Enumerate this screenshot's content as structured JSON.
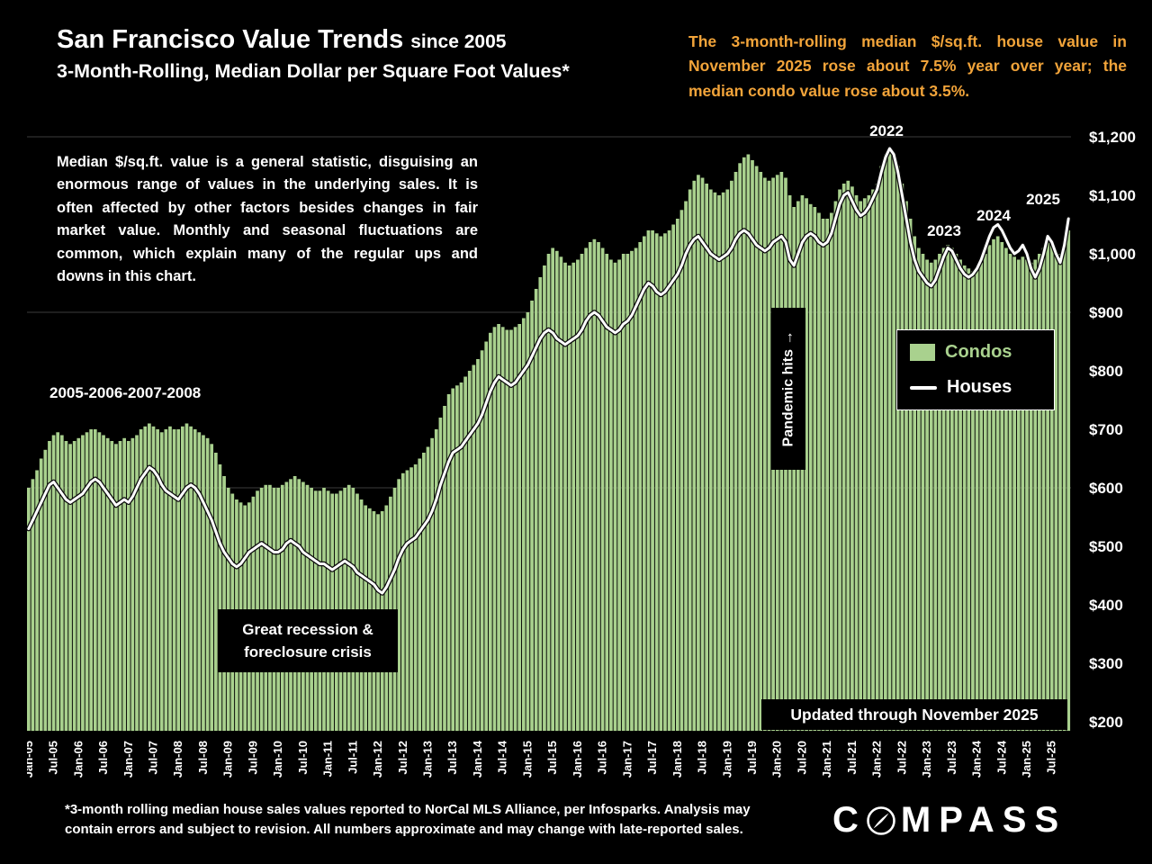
{
  "header": {
    "title": "San Francisco Value Trends",
    "title_suffix": "since 2005",
    "subtitle": "3-Month-Rolling, Median Dollar per Square Foot Values*",
    "headline": "The 3-month-rolling median $/sq.ft. house value in November 2025 rose about 7.5% year over year; the median condo value rose about 3.5%."
  },
  "annotations": {
    "note": "Median $/sq.ft. value is a general statistic, disguising an enormous range of values in the underlying sales. It is often affected by other factors besides changes in fair market value. Monthly and seasonal fluctuations are common, which explain many of the regular ups and downs in this chart.",
    "boom_years": "2005-2006-2007-2008",
    "recession": "Great recession & foreclosure crisis",
    "pandemic": "Pandemic hits →",
    "year_2022": "2022",
    "year_2023": "2023",
    "year_2024": "2024",
    "year_2025": "2025",
    "updated": "Updated through November 2025"
  },
  "legend": {
    "condos": "Condos",
    "houses": "Houses"
  },
  "footer": {
    "disclaimer_line1": "*3-month rolling median house sales values reported to NorCal MLS Alliance, per Infosparks. Analysis may",
    "disclaimer_line2": "contain errors and subject to revision. All numbers approximate and may change with late-reported sales.",
    "brand_c": "C",
    "brand_rest": "MPASS"
  },
  "chart_data": {
    "type": "bar+line",
    "title": "San Francisco Value Trends since 2005, 3-Month-Rolling Median Dollar per Square Foot Values",
    "x_start": "Jan-2005",
    "x_end": "Nov-2025",
    "x_frequency": "monthly",
    "ylim": [
      200,
      1200
    ],
    "bar_color": "#a9d18e",
    "line_color": "#ffffff",
    "gridlines": [
      1200,
      900,
      600
    ],
    "x_tick_labels": [
      "Jan-05",
      "Jul-05",
      "Jan-06",
      "Jul-06",
      "Jan-07",
      "Jul-07",
      "Jan-08",
      "Jul-08",
      "Jan-09",
      "Jul-09",
      "Jan-10",
      "Jul-10",
      "Jan-11",
      "Jul-11",
      "Jan-12",
      "Jul-12",
      "Jan-13",
      "Jul-13",
      "Jan-14",
      "Jul-14",
      "Jan-15",
      "Jul-15",
      "Jan-16",
      "Jul-16",
      "Jan-17",
      "Jul-17",
      "Jan-18",
      "Jul-18",
      "Jan-19",
      "Jul-19",
      "Jan-20",
      "Jul-20",
      "Jan-21",
      "Jul-21",
      "Jan-22",
      "Jul-22",
      "Jan-23",
      "Jul-23",
      "Jan-24",
      "Jul-24",
      "Jan-25",
      "Jul-25"
    ],
    "y_ticks": [
      {
        "label": "$1,200",
        "value": 1200
      },
      {
        "label": "$1,100",
        "value": 1100
      },
      {
        "label": "$1,000",
        "value": 1000
      },
      {
        "label": "$900",
        "value": 900
      },
      {
        "label": "$800",
        "value": 800
      },
      {
        "label": "$700",
        "value": 700
      },
      {
        "label": "$600",
        "value": 600
      },
      {
        "label": "$500",
        "value": 500
      },
      {
        "label": "$400",
        "value": 400
      },
      {
        "label": "$300",
        "value": 300
      },
      {
        "label": "$200",
        "value": 200
      }
    ],
    "series": [
      {
        "name": "Condos",
        "type": "bar",
        "color": "#a9d18e",
        "values": [
          600,
          615,
          630,
          650,
          665,
          680,
          690,
          695,
          690,
          680,
          675,
          680,
          685,
          690,
          695,
          700,
          700,
          695,
          690,
          685,
          680,
          675,
          680,
          685,
          680,
          685,
          690,
          700,
          705,
          710,
          705,
          700,
          695,
          700,
          705,
          700,
          700,
          705,
          710,
          705,
          700,
          695,
          690,
          685,
          675,
          660,
          640,
          620,
          600,
          590,
          580,
          575,
          570,
          575,
          585,
          595,
          600,
          605,
          605,
          600,
          600,
          605,
          610,
          615,
          620,
          615,
          610,
          605,
          600,
          595,
          595,
          600,
          595,
          590,
          590,
          595,
          600,
          605,
          600,
          590,
          580,
          570,
          565,
          560,
          555,
          560,
          570,
          585,
          600,
          615,
          625,
          630,
          635,
          640,
          650,
          660,
          670,
          685,
          700,
          720,
          740,
          760,
          770,
          775,
          780,
          790,
          800,
          810,
          820,
          835,
          850,
          865,
          875,
          880,
          875,
          870,
          870,
          875,
          880,
          890,
          900,
          920,
          940,
          960,
          980,
          1000,
          1010,
          1005,
          995,
          985,
          980,
          985,
          990,
          1000,
          1010,
          1020,
          1025,
          1020,
          1010,
          1000,
          990,
          985,
          990,
          1000,
          1000,
          1005,
          1010,
          1020,
          1030,
          1040,
          1040,
          1035,
          1030,
          1035,
          1040,
          1050,
          1060,
          1075,
          1090,
          1110,
          1125,
          1135,
          1130,
          1120,
          1110,
          1105,
          1100,
          1105,
          1110,
          1125,
          1140,
          1155,
          1165,
          1170,
          1160,
          1150,
          1140,
          1130,
          1125,
          1130,
          1135,
          1140,
          1130,
          1100,
          1080,
          1090,
          1100,
          1095,
          1085,
          1080,
          1070,
          1060,
          1060,
          1070,
          1090,
          1110,
          1120,
          1125,
          1115,
          1100,
          1090,
          1095,
          1100,
          1110,
          1120,
          1150,
          1170,
          1180,
          1170,
          1150,
          1120,
          1090,
          1060,
          1030,
          1010,
          1000,
          990,
          985,
          990,
          1000,
          1010,
          1015,
          1010,
          1000,
          990,
          980,
          975,
          970,
          975,
          985,
          1000,
          1015,
          1025,
          1030,
          1020,
          1010,
          1000,
          995,
          990,
          995,
          990,
          985,
          990,
          1000,
          1010,
          1020,
          1015,
          1005,
          1000,
          1020,
          1040
        ]
      },
      {
        "name": "Houses",
        "type": "line",
        "color": "#ffffff",
        "values": [
          530,
          545,
          560,
          575,
          590,
          605,
          610,
          600,
          590,
          580,
          575,
          580,
          585,
          590,
          600,
          610,
          615,
          610,
          600,
          590,
          580,
          570,
          575,
          580,
          575,
          585,
          600,
          615,
          625,
          635,
          630,
          620,
          605,
          595,
          590,
          585,
          580,
          590,
          600,
          605,
          600,
          590,
          575,
          560,
          545,
          525,
          505,
          490,
          480,
          470,
          465,
          470,
          480,
          490,
          495,
          500,
          505,
          500,
          495,
          490,
          490,
          495,
          505,
          510,
          505,
          500,
          490,
          485,
          480,
          475,
          470,
          470,
          465,
          460,
          465,
          470,
          475,
          470,
          465,
          455,
          450,
          445,
          440,
          435,
          425,
          420,
          430,
          445,
          460,
          480,
          495,
          505,
          510,
          515,
          525,
          535,
          545,
          560,
          580,
          605,
          625,
          645,
          660,
          665,
          670,
          680,
          690,
          700,
          710,
          725,
          745,
          765,
          780,
          790,
          785,
          780,
          775,
          780,
          790,
          800,
          810,
          825,
          840,
          855,
          865,
          870,
          865,
          855,
          850,
          845,
          850,
          855,
          860,
          870,
          885,
          895,
          900,
          895,
          885,
          875,
          870,
          865,
          870,
          880,
          885,
          895,
          910,
          925,
          940,
          950,
          945,
          935,
          930,
          935,
          945,
          955,
          965,
          980,
          1000,
          1015,
          1025,
          1030,
          1020,
          1010,
          1000,
          995,
          990,
          995,
          1000,
          1010,
          1025,
          1035,
          1040,
          1035,
          1025,
          1015,
          1010,
          1005,
          1010,
          1020,
          1025,
          1030,
          1020,
          990,
          980,
          1000,
          1020,
          1030,
          1035,
          1030,
          1020,
          1015,
          1020,
          1035,
          1060,
          1085,
          1100,
          1105,
          1090,
          1075,
          1065,
          1070,
          1080,
          1095,
          1110,
          1140,
          1165,
          1180,
          1170,
          1140,
          1100,
          1060,
          1020,
          990,
          970,
          960,
          950,
          945,
          955,
          975,
          995,
          1010,
          1005,
          990,
          975,
          965,
          960,
          965,
          975,
          990,
          1010,
          1030,
          1045,
          1050,
          1040,
          1025,
          1010,
          1000,
          1005,
          1015,
          1000,
          975,
          960,
          975,
          1000,
          1030,
          1020,
          1000,
          985,
          1015,
          1060
        ]
      }
    ]
  }
}
